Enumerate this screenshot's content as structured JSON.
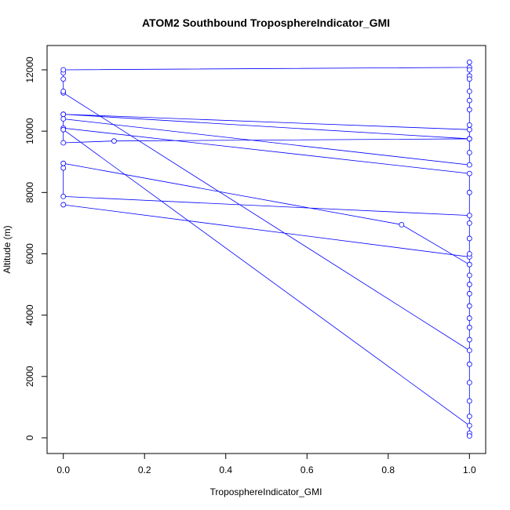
{
  "chart_data": {
    "type": "line",
    "title": "ATOM2 Southbound TroposphereIndicator_GMI",
    "x_label": "TroposphereIndicator_GMI",
    "y_label": "Altitude (m)",
    "color": "#0000ff",
    "markers": true,
    "xlim": [
      -0.04,
      1.04
    ],
    "ylim": [
      -512,
      12793
    ],
    "xticks": [
      {
        "value": 0,
        "label": "0.0"
      },
      0.2,
      0.4,
      0.6,
      0.8,
      {
        "value": 1,
        "label": "1.0"
      }
    ],
    "yticks": [
      0,
      2000,
      4000,
      6000,
      8000,
      10000,
      12000
    ],
    "x": [
      0,
      1,
      1,
      1,
      0,
      0,
      0,
      0.833,
      1,
      1,
      1,
      1,
      1,
      0,
      0,
      0,
      0,
      0,
      1,
      1,
      1,
      1,
      1,
      0,
      0,
      1,
      1,
      1,
      0,
      0,
      1,
      1,
      1,
      1,
      1,
      1,
      1,
      1,
      1,
      1,
      1,
      1,
      1,
      1,
      1,
      0,
      0,
      0.125,
      1,
      1,
      1,
      1,
      1,
      1
    ],
    "values": [
      7600,
      5900,
      6500,
      7250,
      7870,
      8800,
      8950,
      6950,
      5650,
      5000,
      4300,
      3600,
      2850,
      11250,
      11300,
      11700,
      11900,
      12000,
      12080,
      12250,
      11800,
      11000,
      10050,
      10550,
      10400,
      8900,
      9300,
      9750,
      10550,
      10100,
      8620,
      8000,
      7000,
      6000,
      5300,
      4700,
      3900,
      3200,
      2400,
      1800,
      1200,
      700,
      150,
      60,
      400,
      10050,
      9620,
      9680,
      9750,
      10200,
      10700,
      11300,
      11700,
      12000
    ]
  }
}
